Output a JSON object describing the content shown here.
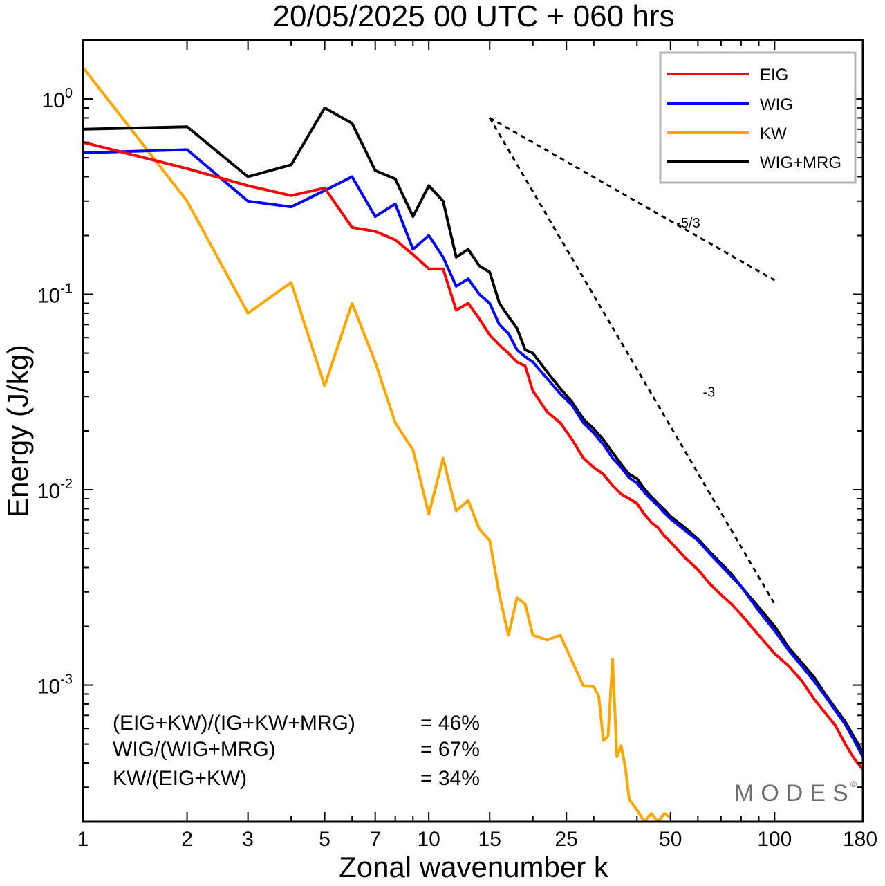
{
  "chart_data": {
    "type": "line",
    "title": "20/05/2025  00 UTC  + 060 hrs",
    "xlabel": "Zonal wavenumber k",
    "ylabel": "Energy (J/kg)",
    "xscale": "log",
    "yscale": "log",
    "xlim": [
      1,
      180
    ],
    "ylim": [
      0.0002,
      2.0
    ],
    "xticks": [
      1,
      2,
      3,
      5,
      7,
      10,
      15,
      25,
      50,
      100,
      180
    ],
    "xtick_labels": [
      "1",
      "2",
      "3",
      "5",
      "7",
      "10",
      "15",
      "25",
      "50",
      "100",
      "180"
    ],
    "yticks": [
      {
        "value": 1,
        "base": "10",
        "exp": "0"
      },
      {
        "value": 0.1,
        "base": "10",
        "exp": "-1"
      },
      {
        "value": 0.01,
        "base": "10",
        "exp": "-2"
      },
      {
        "value": 0.001,
        "base": "10",
        "exp": "-3"
      }
    ],
    "grid": false,
    "legend_position": "top-right",
    "series": [
      {
        "name": "EIG",
        "color": "#ff0000",
        "x": [
          1,
          2,
          3,
          4,
          5,
          6,
          7,
          8,
          9,
          10,
          11,
          12,
          13,
          14,
          15,
          16,
          17,
          18,
          19,
          20,
          22,
          24,
          26,
          28,
          30,
          32,
          34,
          36,
          38,
          40,
          42,
          44,
          46,
          48,
          50,
          55,
          60,
          65,
          70,
          75,
          80,
          90,
          100,
          110,
          120,
          130,
          140,
          150,
          160,
          170,
          180
        ],
        "y": [
          0.6,
          0.44,
          0.36,
          0.32,
          0.35,
          0.22,
          0.21,
          0.19,
          0.16,
          0.135,
          0.135,
          0.083,
          0.09,
          0.075,
          0.062,
          0.055,
          0.05,
          0.045,
          0.043,
          0.032,
          0.025,
          0.022,
          0.018,
          0.0145,
          0.013,
          0.012,
          0.0105,
          0.0095,
          0.009,
          0.0085,
          0.0075,
          0.0068,
          0.0064,
          0.0058,
          0.0054,
          0.0045,
          0.0039,
          0.0033,
          0.0029,
          0.0026,
          0.0023,
          0.0018,
          0.00145,
          0.00125,
          0.00105,
          0.00085,
          0.00072,
          0.00062,
          0.0005,
          0.00042,
          0.00037
        ]
      },
      {
        "name": "WIG",
        "color": "#0000ff",
        "x": [
          1,
          2,
          3,
          4,
          5,
          6,
          7,
          8,
          9,
          10,
          11,
          12,
          13,
          14,
          15,
          16,
          17,
          18,
          19,
          20,
          22,
          24,
          26,
          28,
          30,
          32,
          34,
          36,
          38,
          40,
          42,
          44,
          46,
          48,
          50,
          55,
          60,
          65,
          70,
          75,
          80,
          90,
          100,
          110,
          120,
          130,
          140,
          150,
          160,
          170,
          180
        ],
        "y": [
          0.53,
          0.55,
          0.3,
          0.28,
          0.34,
          0.4,
          0.25,
          0.29,
          0.17,
          0.2,
          0.155,
          0.11,
          0.12,
          0.1,
          0.09,
          0.07,
          0.063,
          0.052,
          0.048,
          0.045,
          0.037,
          0.031,
          0.027,
          0.022,
          0.0195,
          0.017,
          0.0145,
          0.013,
          0.0115,
          0.0108,
          0.0097,
          0.0089,
          0.0083,
          0.0076,
          0.0071,
          0.0062,
          0.0055,
          0.0047,
          0.0041,
          0.0036,
          0.0032,
          0.0024,
          0.0019,
          0.0015,
          0.00125,
          0.00105,
          0.00088,
          0.00074,
          0.00063,
          0.00052,
          0.00043
        ]
      },
      {
        "name": "KW",
        "color": "#ffa500",
        "x": [
          1,
          2,
          3,
          4,
          5,
          6,
          7,
          8,
          9,
          10,
          11,
          12,
          13,
          14,
          15,
          16,
          17,
          18,
          19,
          20,
          22,
          24,
          26,
          28,
          30,
          31,
          32,
          33,
          34,
          35,
          36,
          37,
          38,
          40,
          42,
          44,
          46,
          48,
          50
        ],
        "y": [
          1.45,
          0.3,
          0.08,
          0.115,
          0.034,
          0.09,
          0.045,
          0.022,
          0.016,
          0.0075,
          0.0145,
          0.0078,
          0.0088,
          0.0063,
          0.0055,
          0.0029,
          0.0018,
          0.0028,
          0.0026,
          0.0018,
          0.0017,
          0.0018,
          0.00132,
          0.00099,
          0.00098,
          0.00088,
          0.00052,
          0.00055,
          0.00135,
          0.00043,
          0.00049,
          0.00038,
          0.00026,
          0.00023,
          0.0002,
          0.00022,
          0.0002,
          0.00022,
          0.00021
        ]
      },
      {
        "name": "WIG+MRG",
        "color": "#000000",
        "x": [
          1,
          2,
          3,
          4,
          5,
          6,
          7,
          8,
          9,
          10,
          11,
          12,
          13,
          14,
          15,
          16,
          17,
          18,
          19,
          20,
          22,
          24,
          26,
          28,
          30,
          32,
          34,
          36,
          38,
          40,
          42,
          44,
          46,
          48,
          50,
          55,
          60,
          65,
          70,
          75,
          80,
          90,
          100,
          110,
          120,
          130,
          140,
          150,
          160,
          170,
          180
        ],
        "y": [
          0.7,
          0.72,
          0.4,
          0.46,
          0.9,
          0.75,
          0.43,
          0.39,
          0.25,
          0.36,
          0.3,
          0.155,
          0.17,
          0.14,
          0.13,
          0.09,
          0.077,
          0.067,
          0.052,
          0.05,
          0.04,
          0.033,
          0.028,
          0.023,
          0.0205,
          0.018,
          0.0155,
          0.0135,
          0.012,
          0.0114,
          0.0101,
          0.0092,
          0.0085,
          0.0079,
          0.0073,
          0.0064,
          0.0056,
          0.0048,
          0.0042,
          0.0037,
          0.0032,
          0.0025,
          0.002,
          0.00155,
          0.0013,
          0.0011,
          0.0009,
          0.00076,
          0.00065,
          0.00054,
          0.00045
        ]
      }
    ],
    "reference_slopes": [
      {
        "label": "-5/3",
        "x": [
          15,
          100
        ],
        "y": [
          0.8,
          0.118
        ],
        "label_at": [
          52,
          0.22
        ]
      },
      {
        "label": "-3",
        "x": [
          15,
          100
        ],
        "y": [
          0.8,
          0.0026
        ],
        "label_at": [
          62,
          0.03
        ]
      }
    ],
    "annotations": [
      {
        "label": "(EIG+KW)/(IG+KW+MRG)",
        "value": "= 46%"
      },
      {
        "label": "WIG/(WIG+MRG)",
        "value": "= 67%"
      },
      {
        "label": "KW/(EIG+KW)",
        "value": "= 34%"
      }
    ]
  },
  "watermark": {
    "text": "MODES",
    "mark": "©"
  }
}
